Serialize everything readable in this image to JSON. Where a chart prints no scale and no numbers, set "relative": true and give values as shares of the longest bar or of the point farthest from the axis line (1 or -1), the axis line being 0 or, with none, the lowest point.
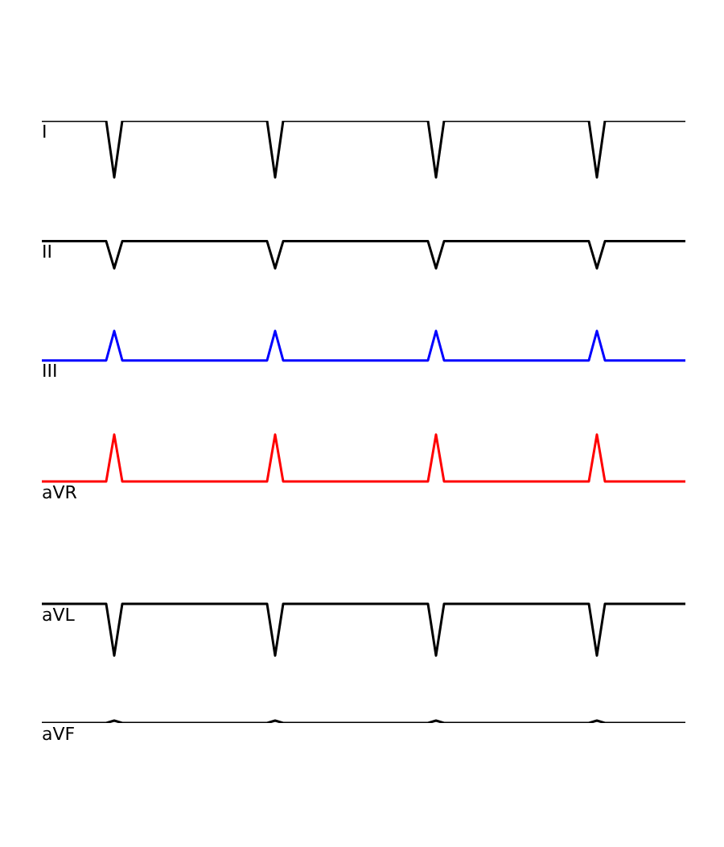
{
  "chart_data": {
    "type": "line",
    "relative": true,
    "legend": false,
    "marker": "none",
    "line_style": "solid",
    "categories": [
      null,
      null,
      null,
      null,
      null,
      null,
      null,
      null,
      null,
      null,
      null,
      null,
      null,
      null,
      null,
      null,
      null,
      null,
      null,
      null,
      null,
      null,
      null,
      null,
      null,
      null,
      null,
      null,
      null,
      null,
      null,
      null,
      null,
      null,
      null,
      null,
      null,
      null,
      null,
      null,
      null,
      null,
      null,
      null,
      null,
      null,
      null,
      null,
      null,
      null,
      null,
      null,
      null,
      null,
      null,
      null,
      null,
      null,
      null,
      null,
      null,
      null,
      null,
      null,
      null,
      null,
      null,
      null,
      null,
      null,
      null,
      null,
      null,
      null,
      null,
      null,
      null,
      null,
      null,
      null,
      null
    ],
    "series": [
      {
        "name": "I",
        "color": "#000000",
        "values": [
          1,
          1,
          1,
          1,
          1,
          1,
          1,
          1,
          1,
          0.906,
          1,
          1,
          1,
          1,
          1,
          1,
          1,
          1,
          1,
          1,
          1,
          1,
          1,
          1,
          1,
          1,
          1,
          1,
          1,
          0.906,
          1,
          1,
          1,
          1,
          1,
          1,
          1,
          1,
          1,
          1,
          1,
          1,
          1,
          1,
          1,
          1,
          1,
          1,
          1,
          0.906,
          1,
          1,
          1,
          1,
          1,
          1,
          1,
          1,
          1,
          1,
          1,
          1,
          1,
          1,
          1,
          1,
          1,
          1,
          1,
          0.906,
          1,
          1,
          1,
          1,
          1,
          1,
          1,
          1,
          1,
          1,
          1
        ]
      },
      {
        "name": "II",
        "color": "#000000",
        "values": [
          0.8,
          0.8,
          0.8,
          0.8,
          0.8,
          0.8,
          0.8,
          0.8,
          0.8,
          0.755,
          0.8,
          0.8,
          0.8,
          0.8,
          0.8,
          0.8,
          0.8,
          0.8,
          0.8,
          0.8,
          0.8,
          0.8,
          0.8,
          0.8,
          0.8,
          0.8,
          0.8,
          0.8,
          0.8,
          0.755,
          0.8,
          0.8,
          0.8,
          0.8,
          0.8,
          0.8,
          0.8,
          0.8,
          0.8,
          0.8,
          0.8,
          0.8,
          0.8,
          0.8,
          0.8,
          0.8,
          0.8,
          0.8,
          0.8,
          0.755,
          0.8,
          0.8,
          0.8,
          0.8,
          0.8,
          0.8,
          0.8,
          0.8,
          0.8,
          0.8,
          0.8,
          0.8,
          0.8,
          0.8,
          0.8,
          0.8,
          0.8,
          0.8,
          0.8,
          0.755,
          0.8,
          0.8,
          0.8,
          0.8,
          0.8,
          0.8,
          0.8,
          0.8,
          0.8,
          0.8,
          0.8
        ]
      },
      {
        "name": "III",
        "color": "#0000ff",
        "values": [
          0.602,
          0.602,
          0.602,
          0.602,
          0.602,
          0.602,
          0.602,
          0.602,
          0.602,
          0.651,
          0.602,
          0.602,
          0.602,
          0.602,
          0.602,
          0.602,
          0.602,
          0.602,
          0.602,
          0.602,
          0.602,
          0.602,
          0.602,
          0.602,
          0.602,
          0.602,
          0.602,
          0.602,
          0.602,
          0.651,
          0.602,
          0.602,
          0.602,
          0.602,
          0.602,
          0.602,
          0.602,
          0.602,
          0.602,
          0.602,
          0.602,
          0.602,
          0.602,
          0.602,
          0.602,
          0.602,
          0.602,
          0.602,
          0.602,
          0.651,
          0.602,
          0.602,
          0.602,
          0.602,
          0.602,
          0.602,
          0.602,
          0.602,
          0.602,
          0.602,
          0.602,
          0.602,
          0.602,
          0.602,
          0.602,
          0.602,
          0.602,
          0.602,
          0.602,
          0.651,
          0.602,
          0.602,
          0.602,
          0.602,
          0.602,
          0.602,
          0.602,
          0.602,
          0.602,
          0.602,
          0.602
        ]
      },
      {
        "name": "aVR",
        "color": "#ff0000",
        "values": [
          0.401,
          0.401,
          0.401,
          0.401,
          0.401,
          0.401,
          0.401,
          0.401,
          0.401,
          0.479,
          0.401,
          0.401,
          0.401,
          0.401,
          0.401,
          0.401,
          0.401,
          0.401,
          0.401,
          0.401,
          0.401,
          0.401,
          0.401,
          0.401,
          0.401,
          0.401,
          0.401,
          0.401,
          0.401,
          0.479,
          0.401,
          0.401,
          0.401,
          0.401,
          0.401,
          0.401,
          0.401,
          0.401,
          0.401,
          0.401,
          0.401,
          0.401,
          0.401,
          0.401,
          0.401,
          0.401,
          0.401,
          0.401,
          0.401,
          0.479,
          0.401,
          0.401,
          0.401,
          0.401,
          0.401,
          0.401,
          0.401,
          0.401,
          0.401,
          0.401,
          0.401,
          0.401,
          0.401,
          0.401,
          0.401,
          0.401,
          0.401,
          0.401,
          0.401,
          0.479,
          0.401,
          0.401,
          0.401,
          0.401,
          0.401,
          0.401,
          0.401,
          0.401,
          0.401,
          0.401,
          0.401
        ]
      },
      {
        "name": "aVL",
        "color": "#000000",
        "values": [
          0.198,
          0.198,
          0.198,
          0.198,
          0.198,
          0.198,
          0.198,
          0.198,
          0.198,
          0.112,
          0.198,
          0.198,
          0.198,
          0.198,
          0.198,
          0.198,
          0.198,
          0.198,
          0.198,
          0.198,
          0.198,
          0.198,
          0.198,
          0.198,
          0.198,
          0.198,
          0.198,
          0.198,
          0.198,
          0.112,
          0.198,
          0.198,
          0.198,
          0.198,
          0.198,
          0.198,
          0.198,
          0.198,
          0.198,
          0.198,
          0.198,
          0.198,
          0.198,
          0.198,
          0.198,
          0.198,
          0.198,
          0.198,
          0.198,
          0.112,
          0.198,
          0.198,
          0.198,
          0.198,
          0.198,
          0.198,
          0.198,
          0.198,
          0.198,
          0.198,
          0.198,
          0.198,
          0.198,
          0.198,
          0.198,
          0.198,
          0.198,
          0.198,
          0.198,
          0.112,
          0.198,
          0.198,
          0.198,
          0.198,
          0.198,
          0.198,
          0.198,
          0.198,
          0.198,
          0.198,
          0.198
        ]
      },
      {
        "name": "aVF",
        "color": "#000000",
        "values": [
          0,
          0,
          0,
          0,
          0,
          0,
          0,
          0,
          0,
          0.004,
          0,
          0,
          0,
          0,
          0,
          0,
          0,
          0,
          0,
          0,
          0,
          0,
          0,
          0,
          0,
          0,
          0,
          0,
          0,
          0.004,
          0,
          0,
          0,
          0,
          0,
          0,
          0,
          0,
          0,
          0,
          0,
          0,
          0,
          0,
          0,
          0,
          0,
          0,
          0,
          0.004,
          0,
          0,
          0,
          0,
          0,
          0,
          0,
          0,
          0,
          0,
          0,
          0,
          0,
          0,
          0,
          0,
          0,
          0,
          0,
          0.004,
          0,
          0,
          0,
          0,
          0,
          0,
          0,
          0,
          0,
          0,
          0
        ]
      }
    ]
  }
}
